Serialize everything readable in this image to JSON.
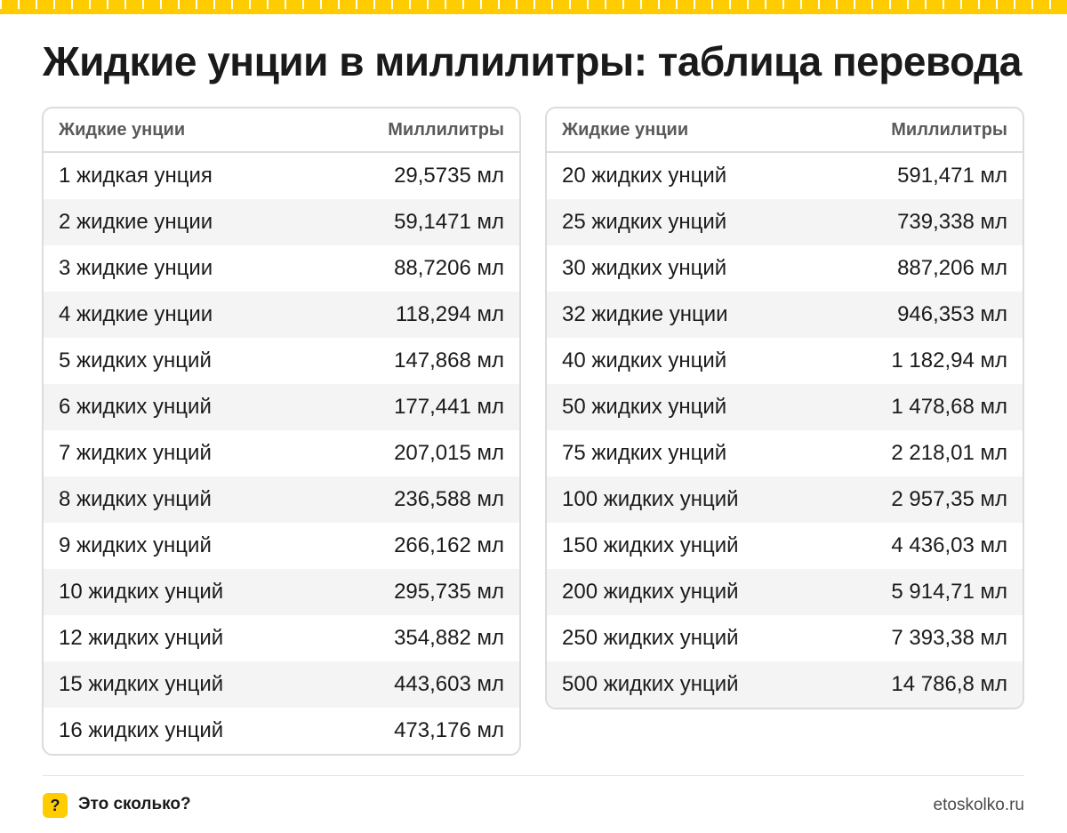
{
  "title": "Жидкие унции в миллилитры: таблица перевода",
  "columns": {
    "ounces": "Жидкие унции",
    "ml": "Миллилитры"
  },
  "left_rows": [
    [
      "1 жидкая унция",
      "29,5735 мл"
    ],
    [
      "2 жидкие унции",
      "59,1471 мл"
    ],
    [
      "3 жидкие унции",
      "88,7206 мл"
    ],
    [
      "4 жидкие унции",
      "118,294 мл"
    ],
    [
      "5 жидких унций",
      "147,868 мл"
    ],
    [
      "6 жидких унций",
      "177,441 мл"
    ],
    [
      "7 жидких унций",
      "207,015 мл"
    ],
    [
      "8 жидких унций",
      "236,588 мл"
    ],
    [
      "9 жидких унций",
      "266,162 мл"
    ],
    [
      "10 жидких унций",
      "295,735 мл"
    ],
    [
      "12 жидких унций",
      "354,882 мл"
    ],
    [
      "15 жидких унций",
      "443,603 мл"
    ],
    [
      "16 жидких унций",
      "473,176 мл"
    ]
  ],
  "right_rows": [
    [
      "20 жидких унций",
      "591,471 мл"
    ],
    [
      "25 жидких унций",
      "739,338 мл"
    ],
    [
      "30 жидких унций",
      "887,206 мл"
    ],
    [
      "32 жидкие унции",
      "946,353 мл"
    ],
    [
      "40 жидких унций",
      "1 182,94 мл"
    ],
    [
      "50 жидких унций",
      "1 478,68 мл"
    ],
    [
      "75 жидких унций",
      "2 218,01 мл"
    ],
    [
      "100 жидких унций",
      "2 957,35 мл"
    ],
    [
      "150 жидких унций",
      "4 436,03 мл"
    ],
    [
      "200 жидких унций",
      "5 914,71 мл"
    ],
    [
      "250 жидких унций",
      "7 393,38 мл"
    ],
    [
      "500 жидких унций",
      "14 786,8 мл"
    ]
  ],
  "footer": {
    "badge": "?",
    "brand": "Это сколько?",
    "site": "etoskolko.ru"
  },
  "colors": {
    "accent": "#ffcc00",
    "border": "#dcdcdc",
    "stripe": "#f4f4f4"
  },
  "icons": {
    "ruler": "ruler-strip",
    "badge": "question-mark-icon"
  }
}
